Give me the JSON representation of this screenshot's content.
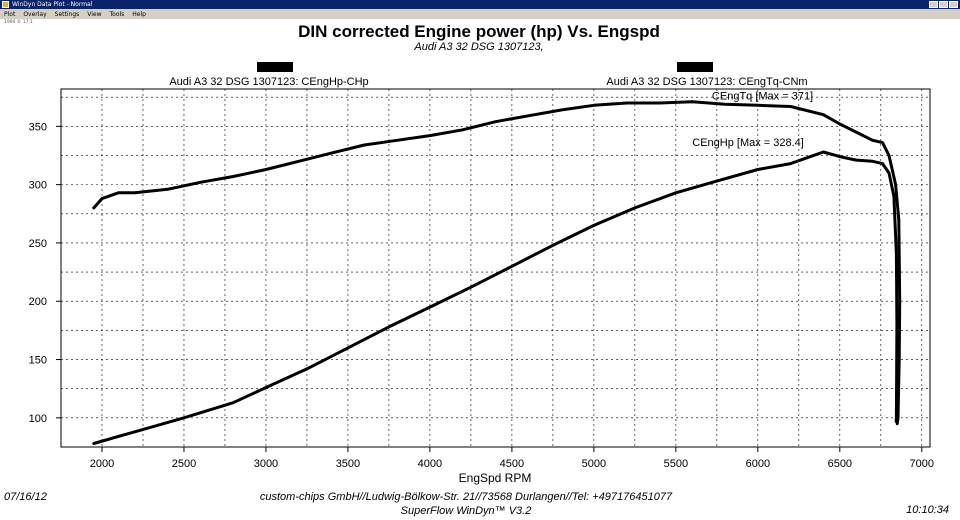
{
  "window": {
    "title": "WinDyn Data Plot - Normal",
    "menu": [
      "Plot",
      "Overlay",
      "Settings",
      "View",
      "Tools",
      "Help"
    ],
    "stamp": "1994 © 17:1"
  },
  "header": {
    "legend_left": "Audi A3 32 DSG 1307123: CEngHp-CHp",
    "legend_right": "Audi A3 32 DSG 1307123: CEngTq-CNm"
  },
  "footer": {
    "date": "07/16/12",
    "company": "custom-chips GmbH//Ludwig-Bölkow-Str. 21//73568 Durlangen//Tel: +497176451077",
    "software": "SuperFlow WinDyn™ V3.2",
    "time": "10:10:34"
  },
  "chart_data": {
    "type": "line",
    "title": "DIN corrected Engine power (hp) Vs. Engspd",
    "subtitle": "Audi A3 32 DSG 1307123,",
    "xlabel": "EngSpd RPM",
    "ylabel": "",
    "xlim": [
      1750,
      7050
    ],
    "ylim": [
      75,
      382
    ],
    "x_ticks": [
      2000,
      2500,
      3000,
      3500,
      4000,
      4500,
      5000,
      5500,
      6000,
      6500,
      7000
    ],
    "y_ticks": [
      100,
      150,
      200,
      250,
      300,
      350
    ],
    "grid": true,
    "annotations": [
      {
        "text": "CEngTq [Max = 371]",
        "x": 5720,
        "y": 373
      },
      {
        "text": "CEngHp [Max = 328.4]",
        "x": 5600,
        "y": 333
      }
    ],
    "series": [
      {
        "name": "CEngTq-CNm",
        "points": [
          [
            1950,
            280
          ],
          [
            2000,
            288
          ],
          [
            2100,
            293
          ],
          [
            2200,
            293
          ],
          [
            2400,
            296
          ],
          [
            2600,
            302
          ],
          [
            2800,
            307
          ],
          [
            3000,
            313
          ],
          [
            3200,
            320
          ],
          [
            3400,
            327
          ],
          [
            3600,
            334
          ],
          [
            3800,
            338
          ],
          [
            4000,
            342
          ],
          [
            4200,
            347
          ],
          [
            4400,
            354
          ],
          [
            4600,
            359
          ],
          [
            4800,
            364
          ],
          [
            5000,
            368
          ],
          [
            5200,
            370
          ],
          [
            5400,
            370
          ],
          [
            5600,
            371
          ],
          [
            5800,
            369
          ],
          [
            6000,
            368
          ],
          [
            6200,
            367
          ],
          [
            6400,
            360
          ],
          [
            6500,
            352
          ],
          [
            6600,
            345
          ],
          [
            6700,
            338
          ],
          [
            6760,
            336
          ],
          [
            6800,
            325
          ],
          [
            6840,
            300
          ],
          [
            6860,
            270
          ],
          [
            6865,
            200
          ],
          [
            6862,
            150
          ],
          [
            6855,
            100
          ],
          [
            6850,
            95
          ]
        ]
      },
      {
        "name": "CEngHp-CHp",
        "points": [
          [
            1950,
            78
          ],
          [
            2200,
            88
          ],
          [
            2500,
            100
          ],
          [
            2800,
            113
          ],
          [
            3000,
            126
          ],
          [
            3250,
            142
          ],
          [
            3500,
            160
          ],
          [
            3750,
            178
          ],
          [
            4000,
            195
          ],
          [
            4250,
            212
          ],
          [
            4500,
            230
          ],
          [
            4750,
            248
          ],
          [
            5000,
            265
          ],
          [
            5250,
            280
          ],
          [
            5500,
            293
          ],
          [
            5750,
            303
          ],
          [
            6000,
            313
          ],
          [
            6200,
            318
          ],
          [
            6400,
            328
          ],
          [
            6500,
            324
          ],
          [
            6600,
            321
          ],
          [
            6700,
            320
          ],
          [
            6760,
            318
          ],
          [
            6800,
            310
          ],
          [
            6830,
            290
          ],
          [
            6845,
            240
          ],
          [
            6848,
            180
          ],
          [
            6846,
            130
          ],
          [
            6845,
            100
          ],
          [
            6843,
            97
          ]
        ]
      }
    ]
  }
}
